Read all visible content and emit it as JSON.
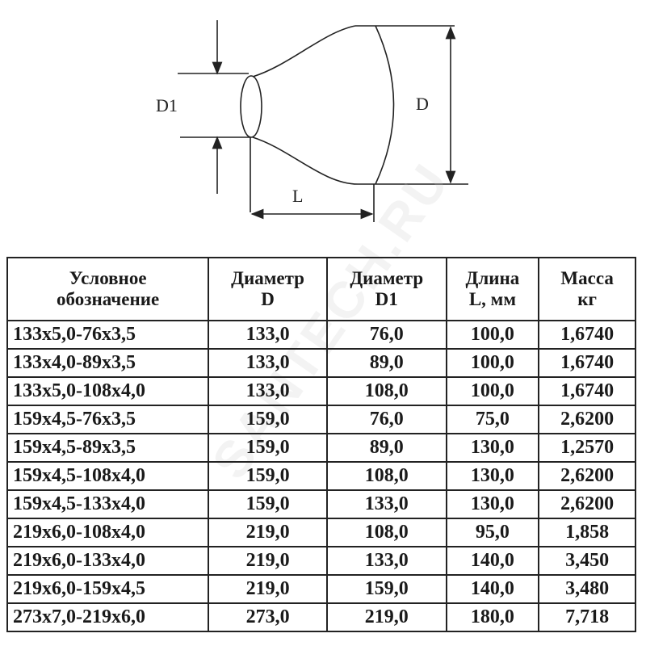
{
  "diagram": {
    "label_d1": "D1",
    "label_d": "D",
    "label_l": "L"
  },
  "watermark": "SANTECH.RU",
  "table": {
    "headers": [
      [
        "Условное",
        "обозначение"
      ],
      [
        "Диаметр",
        "D"
      ],
      [
        "Диаметр",
        "D1"
      ],
      [
        "Длина",
        "L, мм"
      ],
      [
        "Масса",
        "кг"
      ]
    ],
    "rows": [
      [
        "133x5,0-76x3,5",
        "133,0",
        "76,0",
        "100,0",
        "1,6740"
      ],
      [
        "133x4,0-89x3,5",
        "133,0",
        "89,0",
        "100,0",
        "1,6740"
      ],
      [
        "133x5,0-108x4,0",
        "133,0",
        "108,0",
        "100,0",
        "1,6740"
      ],
      [
        "159x4,5-76x3,5",
        "159,0",
        "76,0",
        "75,0",
        "2,6200"
      ],
      [
        "159x4,5-89x3,5",
        "159,0",
        "89,0",
        "130,0",
        "1,2570"
      ],
      [
        "159x4,5-108x4,0",
        "159,0",
        "108,0",
        "130,0",
        "2,6200"
      ],
      [
        "159x4,5-133x4,0",
        "159,0",
        "133,0",
        "130,0",
        "2,6200"
      ],
      [
        "219x6,0-108x4,0",
        "219,0",
        "108,0",
        "95,0",
        "1,858"
      ],
      [
        "219x6,0-133x4,0",
        "219,0",
        "133,0",
        "140,0",
        "3,450"
      ],
      [
        "219x6,0-159x4,5",
        "219,0",
        "159,0",
        "140,0",
        "3,480"
      ],
      [
        "273x7,0-219x6,0",
        "273,0",
        "219,0",
        "180,0",
        "7,718"
      ]
    ]
  }
}
